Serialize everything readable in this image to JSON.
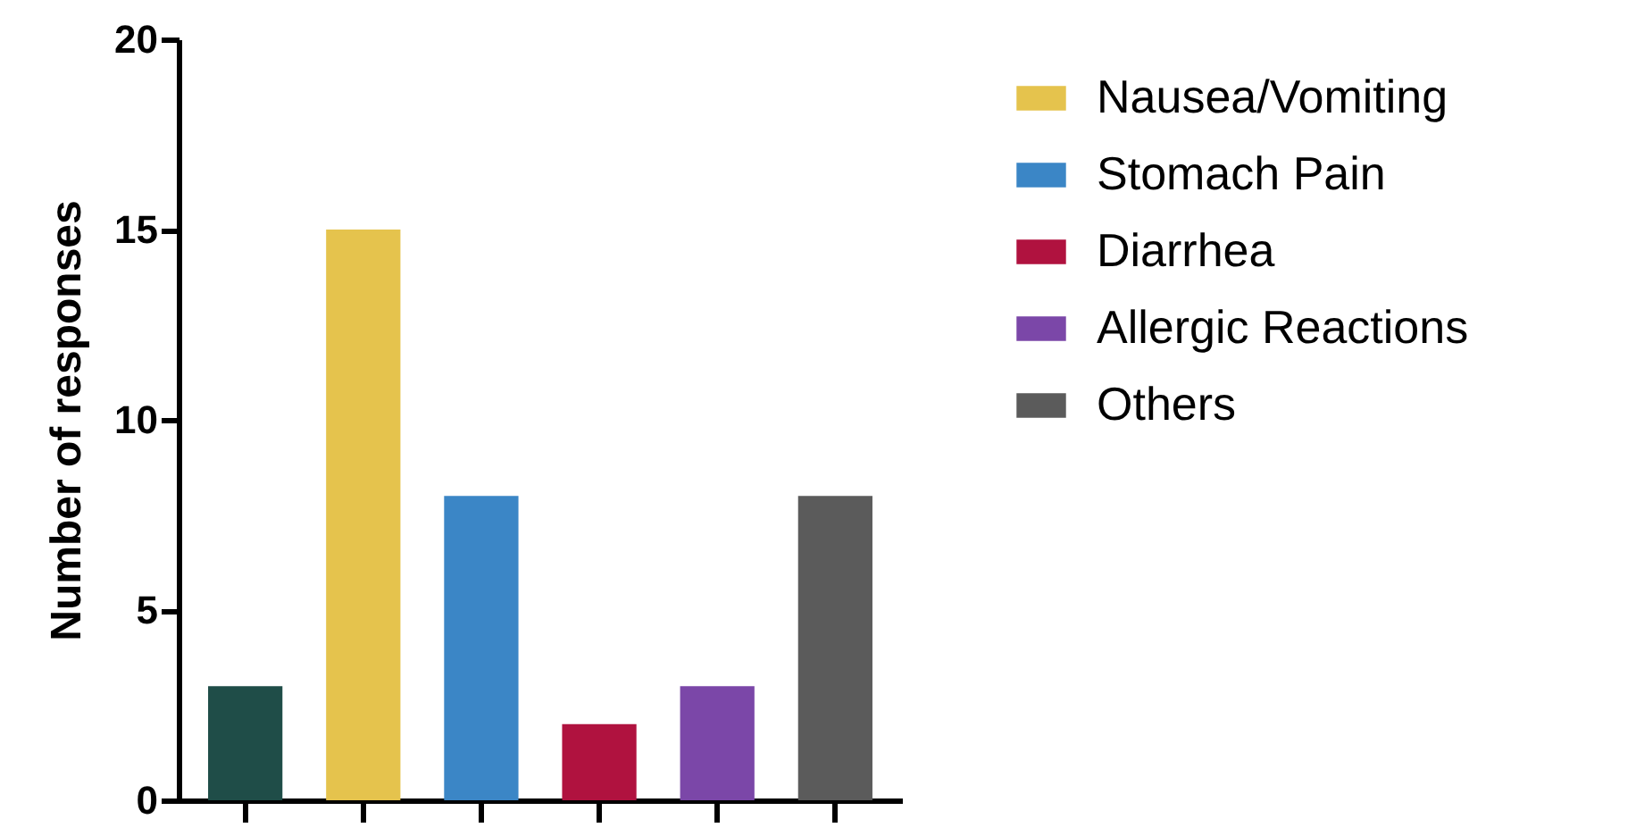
{
  "chart_data": {
    "type": "bar",
    "ylabel": "Number of responses",
    "categories": [
      null,
      null,
      null,
      null,
      null,
      null
    ],
    "series": [
      {
        "color": "#1f4d48",
        "values": [
          3,
          null,
          null,
          null,
          null,
          null
        ]
      },
      {
        "name": "Nausea/Vomiting",
        "color": "#e5c34d",
        "values": [
          null,
          15,
          null,
          null,
          null,
          null
        ]
      },
      {
        "name": "Stomach Pain",
        "color": "#3b86c6",
        "values": [
          null,
          null,
          8,
          null,
          null,
          null
        ]
      },
      {
        "name": "Diarrhea",
        "color": "#b0123f",
        "values": [
          null,
          null,
          null,
          2,
          null,
          null
        ]
      },
      {
        "name": "Allergic Reactions",
        "color": "#7b47a8",
        "values": [
          null,
          null,
          null,
          null,
          3,
          null
        ]
      },
      {
        "name": "Others",
        "color": "#5b5b5b",
        "values": [
          null,
          null,
          null,
          null,
          null,
          8
        ]
      }
    ],
    "ylim": [
      0,
      20
    ],
    "yticks": [
      0,
      5,
      10,
      15,
      20
    ],
    "legend": "right",
    "tick_labels": "y"
  }
}
